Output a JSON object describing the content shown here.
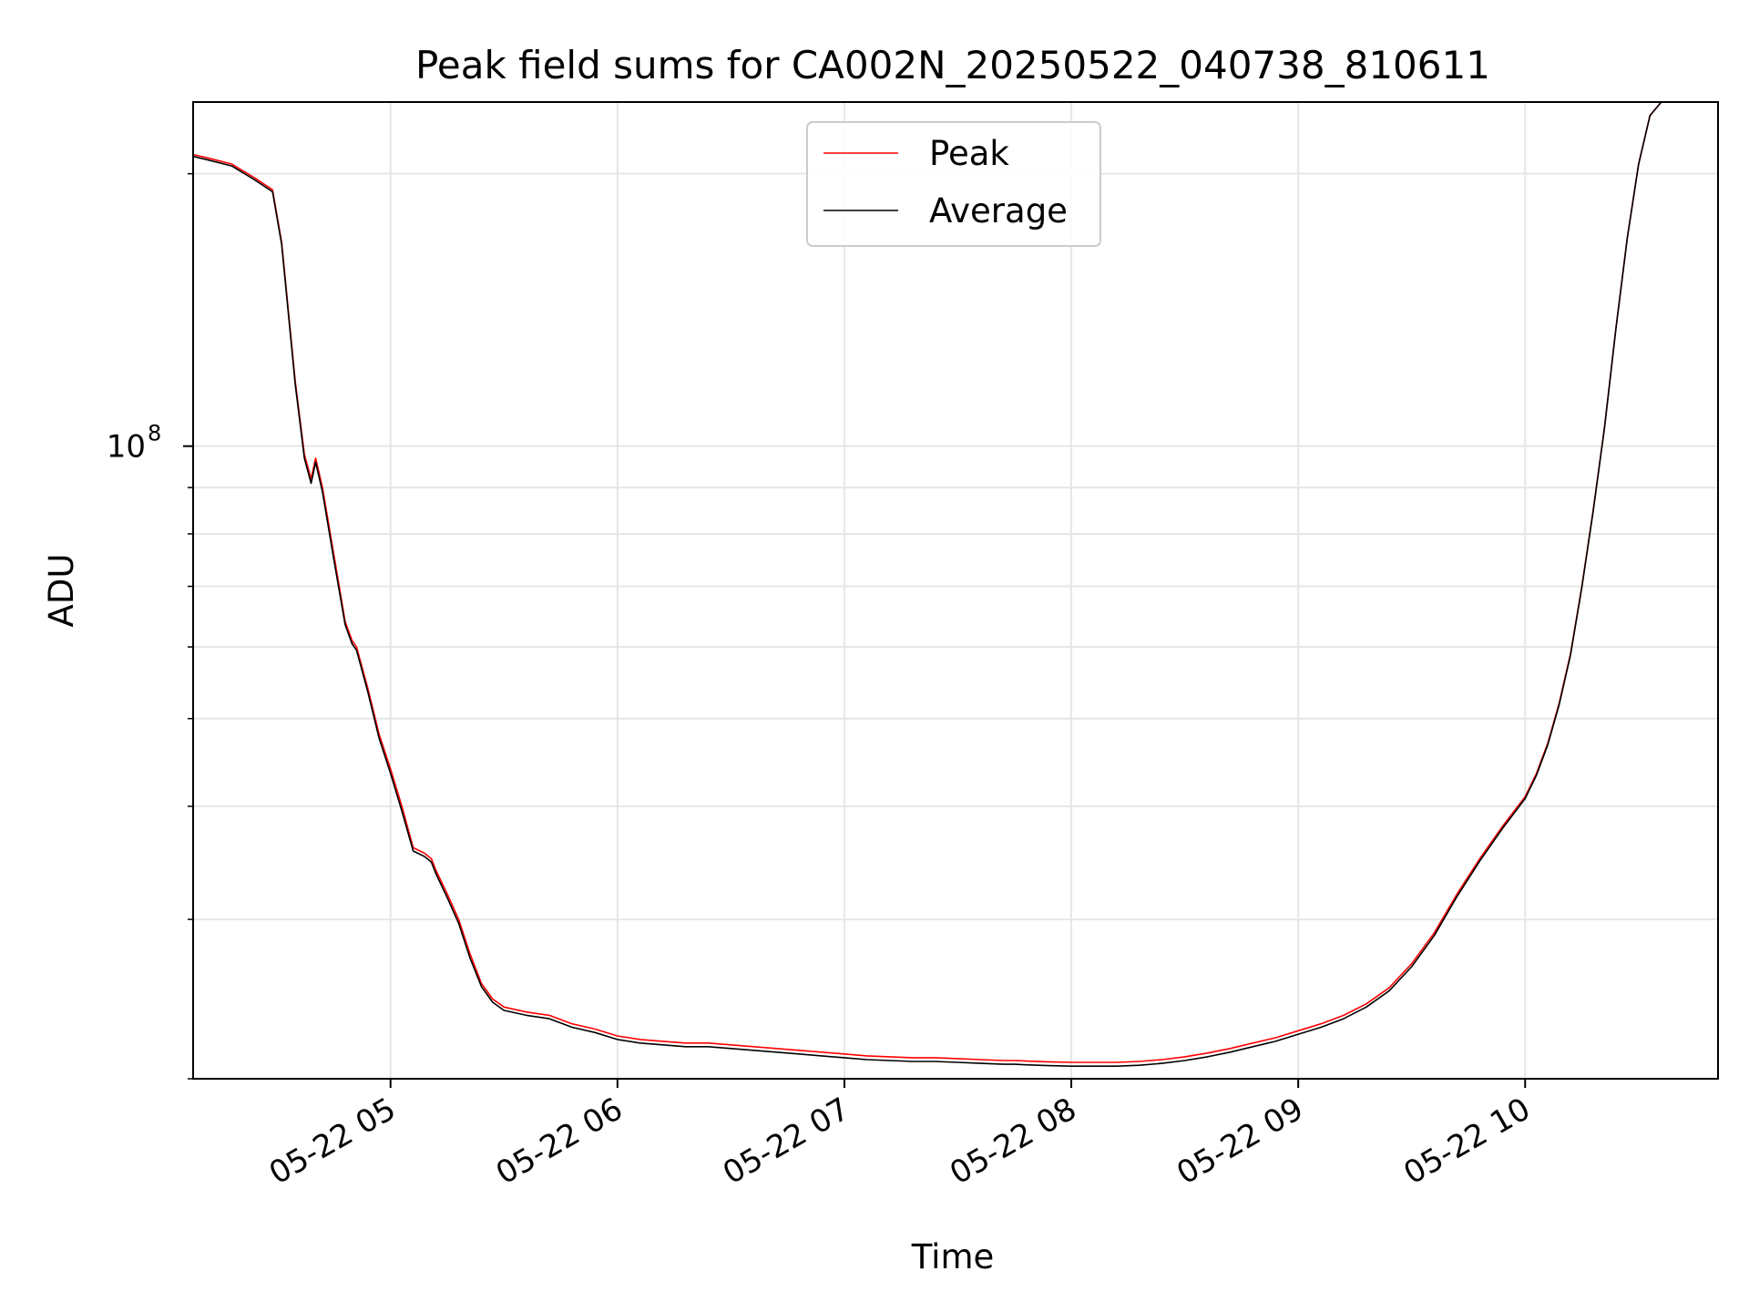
{
  "chart_data": {
    "type": "line",
    "title": "Peak field sums for CA002N_20250522_040738_810611",
    "xlabel": "Time",
    "ylabel": "ADU",
    "yscale": "log",
    "ylim": [
      20000000,
      240000000
    ],
    "xlim": [
      4.13,
      10.85
    ],
    "x_ticks": [
      {
        "value": 5,
        "label": "05-22 05"
      },
      {
        "value": 6,
        "label": "05-22 06"
      },
      {
        "value": 7,
        "label": "05-22 07"
      },
      {
        "value": 8,
        "label": "05-22 08"
      },
      {
        "value": 9,
        "label": "05-22 09"
      },
      {
        "value": 10,
        "label": "05-22 10"
      }
    ],
    "y_ticks": [
      {
        "value": 100000000,
        "base": "10",
        "exp": "8"
      }
    ],
    "y_minor_ticks": [
      20000000,
      30000000,
      40000000,
      50000000,
      60000000,
      70000000,
      80000000,
      90000000,
      200000000
    ],
    "grid": true,
    "legend": {
      "placement": "upper-center",
      "entries": [
        "Peak",
        "Average"
      ]
    },
    "colors": {
      "peak": "#ff0000",
      "average": "#000000",
      "grid": "#e6e6e6"
    },
    "series": [
      {
        "name": "Peak",
        "color": "#ff0000",
        "x": [
          4.13,
          4.2,
          4.3,
          4.4,
          4.48,
          4.52,
          4.58,
          4.62,
          4.65,
          4.67,
          4.7,
          4.75,
          4.8,
          4.83,
          4.85,
          4.9,
          4.95,
          5.0,
          5.05,
          5.1,
          5.15,
          5.18,
          5.2,
          5.25,
          5.3,
          5.35,
          5.4,
          5.45,
          5.5,
          5.6,
          5.7,
          5.8,
          5.9,
          6.0,
          6.1,
          6.2,
          6.3,
          6.4,
          6.5,
          6.6,
          6.7,
          6.8,
          6.9,
          7.0,
          7.1,
          7.2,
          7.3,
          7.4,
          7.5,
          7.6,
          7.7,
          7.75,
          7.8,
          7.9,
          8.0,
          8.1,
          8.2,
          8.3,
          8.4,
          8.5,
          8.6,
          8.7,
          8.8,
          8.9,
          9.0,
          9.1,
          9.2,
          9.3,
          9.4,
          9.5,
          9.6,
          9.7,
          9.8,
          9.9,
          10.0,
          10.05,
          10.1,
          10.15,
          10.2,
          10.25,
          10.3,
          10.35,
          10.4,
          10.45,
          10.5,
          10.55,
          10.6
        ],
        "values": [
          210000000,
          208000000,
          205000000,
          198000000,
          192000000,
          168000000,
          118000000,
          98000000,
          92000000,
          97000000,
          90000000,
          76000000,
          64000000,
          61000000,
          60000000,
          54000000,
          48000000,
          44000000,
          40000000,
          36000000,
          35500000,
          35000000,
          34000000,
          32000000,
          30000000,
          27500000,
          25500000,
          24500000,
          24000000,
          23700000,
          23500000,
          23000000,
          22700000,
          22300000,
          22100000,
          22000000,
          21900000,
          21900000,
          21800000,
          21700000,
          21600000,
          21500000,
          21400000,
          21300000,
          21200000,
          21150000,
          21100000,
          21100000,
          21050000,
          21000000,
          20950000,
          20950000,
          20920000,
          20880000,
          20850000,
          20850000,
          20850000,
          20900000,
          21000000,
          21150000,
          21350000,
          21600000,
          21900000,
          22200000,
          22600000,
          23000000,
          23500000,
          24200000,
          25200000,
          26800000,
          29000000,
          32000000,
          35000000,
          38000000,
          41000000,
          43500000,
          47000000,
          52000000,
          59000000,
          70000000,
          85000000,
          105000000,
          135000000,
          170000000,
          205000000,
          232000000,
          240000000
        ]
      },
      {
        "name": "Average",
        "color": "#000000",
        "x": [
          4.13,
          4.2,
          4.3,
          4.4,
          4.48,
          4.52,
          4.58,
          4.62,
          4.65,
          4.67,
          4.7,
          4.75,
          4.8,
          4.83,
          4.85,
          4.9,
          4.95,
          5.0,
          5.05,
          5.1,
          5.15,
          5.18,
          5.2,
          5.25,
          5.3,
          5.35,
          5.4,
          5.45,
          5.5,
          5.6,
          5.7,
          5.8,
          5.9,
          6.0,
          6.1,
          6.2,
          6.3,
          6.4,
          6.5,
          6.6,
          6.7,
          6.8,
          6.9,
          7.0,
          7.1,
          7.2,
          7.3,
          7.4,
          7.5,
          7.6,
          7.7,
          7.75,
          7.8,
          7.9,
          8.0,
          8.1,
          8.2,
          8.3,
          8.4,
          8.5,
          8.6,
          8.7,
          8.8,
          8.9,
          9.0,
          9.1,
          9.2,
          9.3,
          9.4,
          9.5,
          9.6,
          9.7,
          9.8,
          9.9,
          10.0,
          10.05,
          10.1,
          10.15,
          10.2,
          10.25,
          10.3,
          10.35,
          10.4,
          10.45,
          10.5,
          10.55,
          10.6
        ],
        "values": [
          209000000,
          207000000,
          204000000,
          197000000,
          191000000,
          167000000,
          117000000,
          97000000,
          91000000,
          96000000,
          89000000,
          75000000,
          63500000,
          60500000,
          59500000,
          53500000,
          47500000,
          43500000,
          39500000,
          35700000,
          35200000,
          34700000,
          33700000,
          31700000,
          29700000,
          27200000,
          25300000,
          24300000,
          23800000,
          23500000,
          23300000,
          22800000,
          22500000,
          22100000,
          21900000,
          21800000,
          21700000,
          21700000,
          21600000,
          21500000,
          21400000,
          21300000,
          21200000,
          21100000,
          21000000,
          20950000,
          20900000,
          20900000,
          20850000,
          20800000,
          20750000,
          20750000,
          20720000,
          20680000,
          20650000,
          20650000,
          20650000,
          20700000,
          20800000,
          20950000,
          21150000,
          21400000,
          21700000,
          22000000,
          22400000,
          22800000,
          23300000,
          24000000,
          25000000,
          26600000,
          28800000,
          31800000,
          34800000,
          37800000,
          40800000,
          43300000,
          46800000,
          51800000,
          58800000,
          69800000,
          84800000,
          104800000,
          134800000,
          169800000,
          204800000,
          231800000,
          240000000
        ]
      }
    ]
  }
}
